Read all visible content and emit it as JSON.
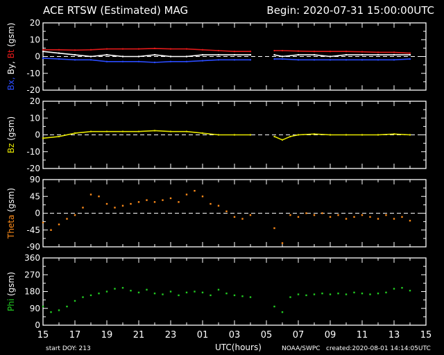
{
  "header": {
    "title": "ACE RTSW (Estimated) MAG",
    "begin": "Begin: 2020-07-31 15:00:00UTC"
  },
  "footer": {
    "start_doy": "start DOY:  213",
    "xlabel": "UTC(hours)",
    "credit": "NOAA/SWPC",
    "created": "created:2020-08-01 14:14:05UTC"
  },
  "colors": {
    "bt": "#e41a1a",
    "bx": "#2b4cff",
    "by": "#ffffff",
    "bz": "#e6e600",
    "theta": "#ff8c1a",
    "phi": "#22cc22",
    "frame": "#ffffff"
  },
  "chart_data": [
    {
      "type": "line",
      "panel": "b-components",
      "ylabel_parts": [
        {
          "text": "Bx,",
          "color": "#2b4cff"
        },
        {
          "text": " By,",
          "color": "#ffffff"
        },
        {
          "text": " Bt",
          "color": "#e41a1a"
        },
        {
          "text": " (gsm)",
          "color": "#ffffff"
        }
      ],
      "ylim": [
        -20,
        20
      ],
      "yticks": [
        -20,
        -10,
        0,
        10,
        20
      ],
      "zero_line": true,
      "x": [
        0,
        1,
        2,
        3,
        4,
        5,
        6,
        7,
        8,
        9,
        10,
        11,
        12,
        13,
        13.2,
        14.5,
        15,
        16,
        17,
        18,
        19,
        20,
        21,
        22,
        23
      ],
      "series": [
        {
          "name": "Bt",
          "color": "#e41a1a",
          "values": [
            4,
            4,
            3.8,
            4,
            4.5,
            4.5,
            4.5,
            4.8,
            4.5,
            4.5,
            4,
            3.5,
            3,
            3,
            null,
            3.5,
            3.5,
            3.2,
            3,
            3,
            3,
            2.8,
            2.5,
            2.5,
            2
          ]
        },
        {
          "name": "By",
          "color": "#ffffff",
          "values": [
            3,
            2,
            1,
            0,
            1,
            0,
            0,
            1,
            0,
            0,
            1,
            1,
            1,
            1,
            null,
            1,
            0,
            1,
            1,
            0,
            1,
            1,
            1,
            1,
            1
          ]
        },
        {
          "name": "Bx",
          "color": "#2b4cff",
          "values": [
            -1,
            -1.5,
            -2,
            -2,
            -3,
            -3,
            -3,
            -3.5,
            -3,
            -3,
            -2.5,
            -2,
            -2,
            -2,
            null,
            -1.5,
            -1.5,
            -2,
            -2,
            -2,
            -2,
            -2,
            -2,
            -2,
            -1.5
          ]
        }
      ]
    },
    {
      "type": "line",
      "panel": "bz",
      "ylabel_parts": [
        {
          "text": "Bz",
          "color": "#e6e600"
        },
        {
          "text": " (gsm)",
          "color": "#ffffff"
        }
      ],
      "ylim": [
        -20,
        20
      ],
      "yticks": [
        -20,
        -10,
        0,
        10,
        20
      ],
      "zero_line": true,
      "x": [
        0,
        1,
        2,
        3,
        4,
        5,
        6,
        7,
        8,
        9,
        10,
        11,
        12,
        13,
        13.2,
        14.5,
        15,
        15.5,
        16,
        17,
        18,
        19,
        20,
        21,
        22,
        23
      ],
      "series": [
        {
          "name": "Bz",
          "color": "#e6e600",
          "values": [
            -2,
            -1,
            1,
            2,
            2,
            2,
            2,
            2.5,
            2,
            2,
            1,
            0,
            0,
            0,
            null,
            -1,
            -3,
            -1,
            0,
            0.5,
            0,
            0,
            0,
            0,
            0.5,
            0
          ]
        }
      ]
    },
    {
      "type": "scatter",
      "panel": "theta",
      "ylabel_parts": [
        {
          "text": "Theta",
          "color": "#ff8c1a"
        },
        {
          "text": " (gsm)",
          "color": "#ffffff"
        }
      ],
      "ylim": [
        -90,
        90
      ],
      "yticks": [
        -90,
        -45,
        0,
        45,
        90
      ],
      "zero_line": true,
      "x": [
        0,
        0.5,
        1,
        1.5,
        2,
        2.5,
        3,
        3.5,
        4,
        4.5,
        5,
        5.5,
        6,
        6.5,
        7,
        7.5,
        8,
        8.5,
        9,
        9.5,
        10,
        10.5,
        11,
        11.5,
        12,
        12.5,
        13,
        13.2,
        14.5,
        15,
        15.5,
        16,
        16.5,
        17,
        17.5,
        18,
        18.5,
        19,
        19.5,
        20,
        20.5,
        21,
        21.5,
        22,
        22.5,
        23
      ],
      "series": [
        {
          "name": "Theta",
          "color": "#ff8c1a",
          "values": [
            -25,
            -45,
            -30,
            -15,
            -5,
            15,
            50,
            45,
            25,
            15,
            20,
            25,
            30,
            35,
            30,
            35,
            40,
            30,
            50,
            60,
            45,
            25,
            20,
            5,
            -10,
            -15,
            -5,
            null,
            -40,
            -80,
            -5,
            -10,
            0,
            -5,
            0,
            -10,
            -5,
            -15,
            -10,
            -5,
            -10,
            -15,
            -5,
            -15,
            -10,
            -20
          ]
        }
      ]
    },
    {
      "type": "scatter",
      "panel": "phi",
      "ylabel_parts": [
        {
          "text": "Phi",
          "color": "#22cc22"
        },
        {
          "text": " (gsm)",
          "color": "#ffffff"
        }
      ],
      "ylim": [
        0,
        360
      ],
      "yticks": [
        0,
        90,
        180,
        270,
        360
      ],
      "zero_line": false,
      "x": [
        0,
        0.5,
        1,
        1.5,
        2,
        2.5,
        3,
        3.5,
        4,
        4.5,
        5,
        5.5,
        6,
        6.5,
        7,
        7.5,
        8,
        8.5,
        9,
        9.5,
        10,
        10.5,
        11,
        11.5,
        12,
        12.5,
        13,
        13.2,
        14.5,
        15,
        15.5,
        16,
        16.5,
        17,
        17.5,
        18,
        18.5,
        19,
        19.5,
        20,
        20.5,
        21,
        21.5,
        22,
        22.5,
        23
      ],
      "series": [
        {
          "name": "Phi",
          "color": "#22cc22",
          "values": [
            100,
            70,
            80,
            100,
            130,
            150,
            160,
            170,
            180,
            195,
            200,
            185,
            175,
            190,
            170,
            165,
            180,
            160,
            175,
            180,
            175,
            160,
            190,
            170,
            160,
            155,
            150,
            null,
            100,
            70,
            150,
            165,
            160,
            165,
            170,
            165,
            170,
            165,
            175,
            170,
            165,
            170,
            175,
            195,
            200,
            185
          ]
        }
      ]
    }
  ],
  "xaxis": {
    "range": [
      0,
      24
    ],
    "major_step": 2,
    "tick_labels": [
      "15",
      "17",
      "19",
      "21",
      "23",
      "01",
      "03",
      "05",
      "07",
      "09",
      "11",
      "13",
      "15"
    ]
  }
}
